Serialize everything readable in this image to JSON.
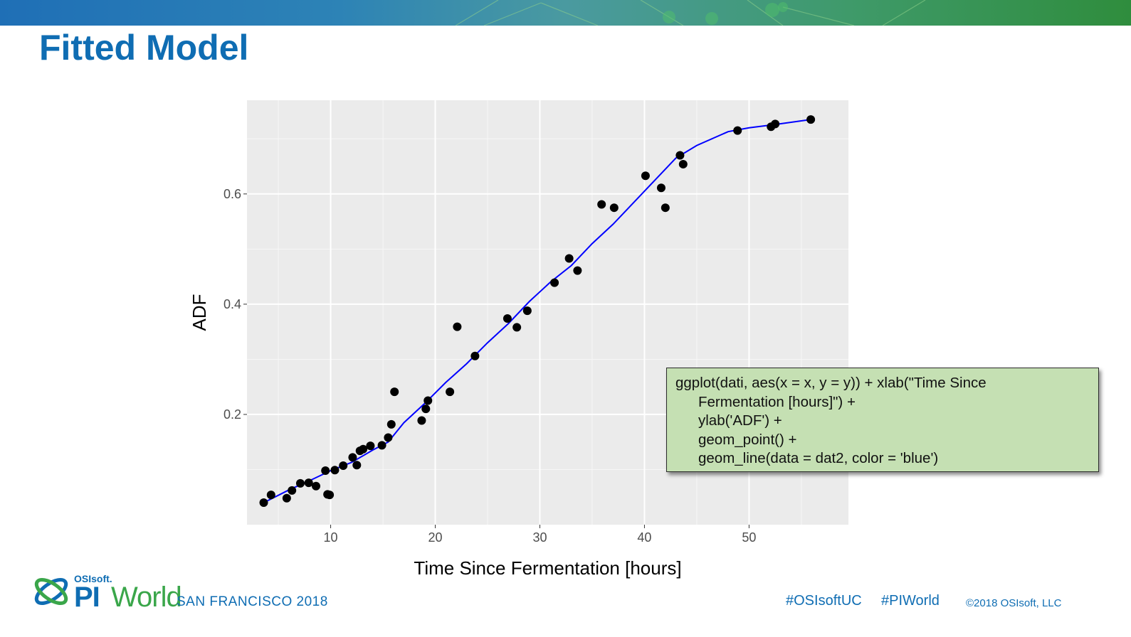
{
  "slide": {
    "title": "Fitted Model",
    "title_color": "#0f6db3"
  },
  "chart_data": {
    "type": "scatter",
    "xlabel": "Time Since Fermentation [hours]",
    "ylabel": "ADF",
    "xlim": [
      2,
      59.5
    ],
    "ylim": [
      0.0,
      0.77
    ],
    "x_ticks": [
      10,
      20,
      30,
      40,
      50
    ],
    "y_ticks": [
      0.2,
      0.4,
      0.6
    ],
    "x_tick_labels": [
      "10",
      "20",
      "30",
      "40",
      "50"
    ],
    "y_tick_labels": [
      "0.2",
      "0.4",
      "0.6"
    ],
    "grid": true,
    "background": "#ebebeb",
    "point_color": "#000000",
    "line_color": "#0000ff",
    "points": {
      "x": [
        3.6,
        4.3,
        5.8,
        6.3,
        7.1,
        7.9,
        8.6,
        9.5,
        9.7,
        9.9,
        10.4,
        11.2,
        12.1,
        12.5,
        12.8,
        13.1,
        13.8,
        14.9,
        15.5,
        15.8,
        16.1,
        18.7,
        19.1,
        19.3,
        21.4,
        22.1,
        23.8,
        26.9,
        27.8,
        28.8,
        31.4,
        32.8,
        33.6,
        35.9,
        37.1,
        40.1,
        41.6,
        42.0,
        43.4,
        43.7,
        48.9,
        52.1,
        52.5,
        55.9
      ],
      "y": [
        0.04,
        0.054,
        0.048,
        0.062,
        0.075,
        0.076,
        0.07,
        0.098,
        0.055,
        0.054,
        0.099,
        0.107,
        0.122,
        0.108,
        0.134,
        0.137,
        0.143,
        0.144,
        0.158,
        0.182,
        0.241,
        0.189,
        0.21,
        0.225,
        0.241,
        0.359,
        0.306,
        0.374,
        0.358,
        0.388,
        0.439,
        0.483,
        0.461,
        0.581,
        0.575,
        0.633,
        0.611,
        0.575,
        0.67,
        0.654,
        0.715,
        0.722,
        0.727,
        0.735
      ]
    },
    "fitted_line": {
      "x": [
        3.6,
        6,
        8,
        10,
        12,
        14,
        15.5,
        17,
        19,
        21,
        23,
        25,
        27,
        29,
        31,
        33,
        35,
        37,
        39,
        41,
        43,
        45,
        48,
        50,
        52.5,
        55.9
      ],
      "y": [
        0.04,
        0.063,
        0.08,
        0.098,
        0.113,
        0.135,
        0.15,
        0.185,
        0.22,
        0.258,
        0.292,
        0.33,
        0.365,
        0.405,
        0.44,
        0.47,
        0.51,
        0.545,
        0.585,
        0.625,
        0.665,
        0.688,
        0.713,
        0.72,
        0.726,
        0.735
      ]
    }
  },
  "code_box": {
    "lines": [
      "ggplot(dati, aes(x = x, y = y)) + xlab(\"Time Since",
      "Fermentation [hours]\") +",
      "ylab('ADF') +",
      "geom_point() +",
      "geom_line(data = dat2, color = 'blue')"
    ],
    "background": "#c5e0b3"
  },
  "footer": {
    "logo_company": "OSIsoft.",
    "logo_pi": "PI",
    "logo_world": "World",
    "logo_city": "SAN FRANCISCO 2018",
    "hashtag_1": "#OSIsoftUC",
    "hashtag_2": "#PIWorld",
    "copyright": "©2018 OSIsoft, LLC"
  }
}
